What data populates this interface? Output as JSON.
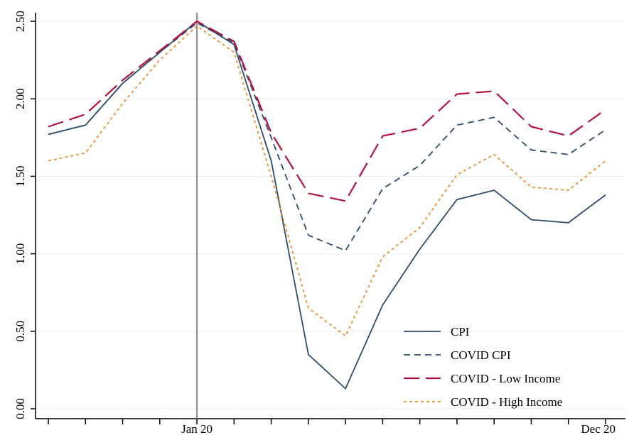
{
  "chart_data": {
    "type": "line",
    "title": "",
    "xlabel": "",
    "ylabel": "",
    "ylim": [
      0,
      2.5
    ],
    "y_ticks": [
      "0.00",
      "0.50",
      "1.00",
      "1.50",
      "2.00",
      "2.50"
    ],
    "x_tick_labels": [
      {
        "index": 4,
        "label": "Jan 20"
      },
      {
        "index": 15,
        "label": "Dec 20"
      }
    ],
    "reference_line_index": 4,
    "legend_position": "bottom-right",
    "grid": true,
    "series": [
      {
        "name": "CPI",
        "color": "#2f4b6e",
        "dash": "solid",
        "values": [
          1.77,
          1.83,
          2.1,
          2.3,
          2.5,
          2.35,
          1.6,
          0.35,
          0.13,
          0.67,
          1.03,
          1.35,
          1.41,
          1.22,
          1.2,
          1.38
        ]
      },
      {
        "name": "COVID CPI",
        "color": "#2f4b6e",
        "dash": "dashed",
        "values": [
          1.77,
          1.83,
          2.1,
          2.3,
          2.49,
          2.36,
          1.75,
          1.12,
          1.02,
          1.42,
          1.57,
          1.83,
          1.88,
          1.67,
          1.64,
          1.8
        ]
      },
      {
        "name": "COVID - Low Income",
        "color": "#b5123e",
        "dash": "longdash",
        "values": [
          1.82,
          1.9,
          2.12,
          2.31,
          2.5,
          2.37,
          1.78,
          1.39,
          1.34,
          1.76,
          1.81,
          2.03,
          2.05,
          1.82,
          1.76,
          1.93
        ]
      },
      {
        "name": "COVID - High Income",
        "color": "#e8902a",
        "dash": "dotted",
        "values": [
          1.6,
          1.65,
          1.97,
          2.25,
          2.47,
          2.3,
          1.5,
          0.65,
          0.47,
          0.98,
          1.17,
          1.51,
          1.64,
          1.43,
          1.41,
          1.6
        ]
      }
    ]
  }
}
